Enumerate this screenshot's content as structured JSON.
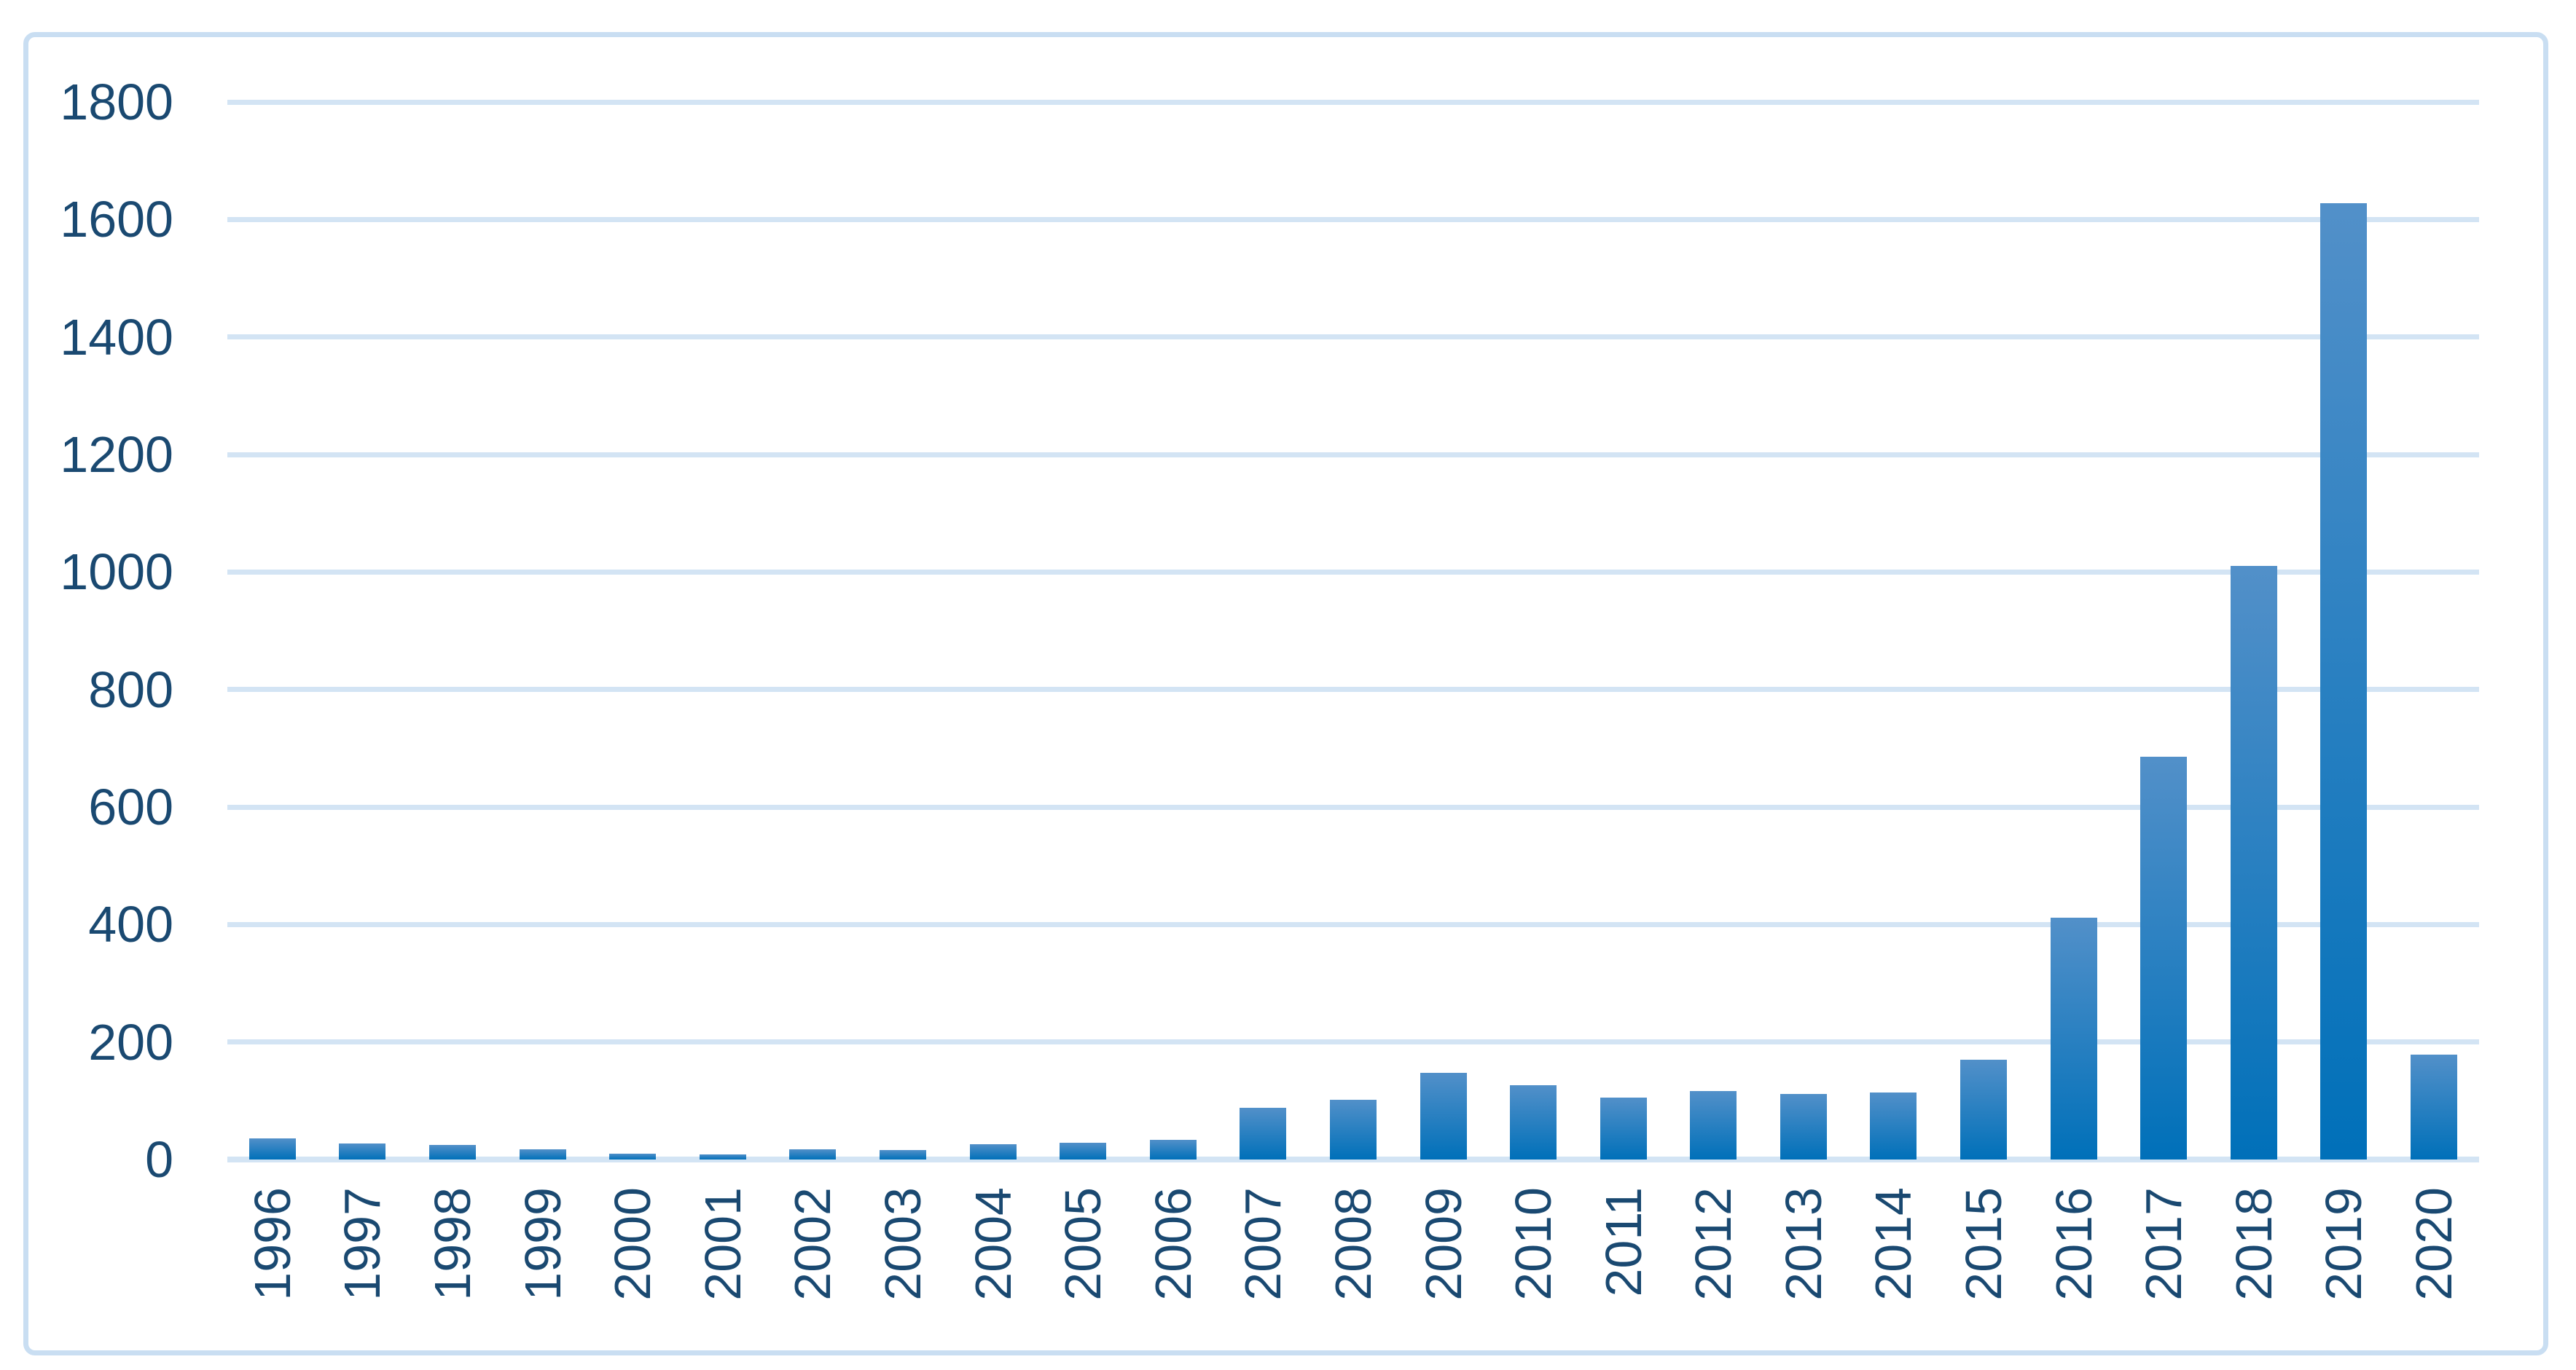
{
  "chart_data": {
    "type": "bar",
    "title": "",
    "xlabel": "",
    "ylabel": "",
    "categories": [
      "1996",
      "1997",
      "1998",
      "1999",
      "2000",
      "2001",
      "2002",
      "2003",
      "2004",
      "2005",
      "2006",
      "2007",
      "2008",
      "2009",
      "2010",
      "2011",
      "2012",
      "2013",
      "2014",
      "2015",
      "2016",
      "2017",
      "2018",
      "2019",
      "2020"
    ],
    "values": [
      36,
      27,
      25,
      17,
      10,
      9,
      17,
      16,
      26,
      28,
      34,
      88,
      102,
      148,
      127,
      106,
      116,
      112,
      114,
      170,
      411,
      686,
      1010,
      1628,
      178
    ],
    "ylim": [
      0,
      1800
    ],
    "yticks": [
      0,
      200,
      400,
      600,
      800,
      1000,
      1200,
      1400,
      1600,
      1800
    ],
    "grid": true,
    "legend": false,
    "colors": {
      "bar_gradient_top": "#5290c9",
      "bar_gradient_bottom": "#0070b9",
      "gridline": "#d3e4f4",
      "axis_label": "#1a4971",
      "chart_border": "#c9def2"
    }
  }
}
